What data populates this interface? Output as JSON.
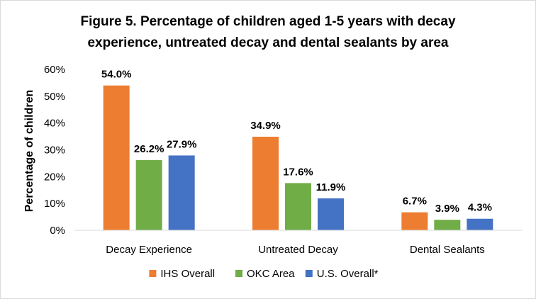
{
  "chart_data": {
    "type": "bar",
    "title_lines": [
      "Figure 5. Percentage of children aged 1-5 years with decay",
      "experience, untreated decay and dental sealants by area"
    ],
    "ylabel": "Percentage of children",
    "xlabel": "",
    "ylim": [
      0,
      60
    ],
    "yticks": [
      0,
      10,
      20,
      30,
      40,
      50,
      60
    ],
    "ytick_labels": [
      "0%",
      "10%",
      "20%",
      "30%",
      "40%",
      "50%",
      "60%"
    ],
    "grid": false,
    "legend_position": "bottom",
    "categories": [
      "Decay Experience",
      "Untreated Decay",
      "Dental Sealants"
    ],
    "series": [
      {
        "name": "IHS Overall",
        "color": "#ED7D31",
        "values": [
          54.0,
          34.9,
          6.7
        ],
        "labels": [
          "54.0%",
          "34.9%",
          "6.7%"
        ]
      },
      {
        "name": "OKC Area",
        "color": "#70AD47",
        "values": [
          26.2,
          17.6,
          3.9
        ],
        "labels": [
          "26.2%",
          "17.6%",
          "3.9%"
        ]
      },
      {
        "name": "U.S. Overall*",
        "color": "#4472C4",
        "values": [
          27.9,
          11.9,
          4.3
        ],
        "labels": [
          "27.9%",
          "11.9%",
          "4.3%"
        ]
      }
    ]
  }
}
